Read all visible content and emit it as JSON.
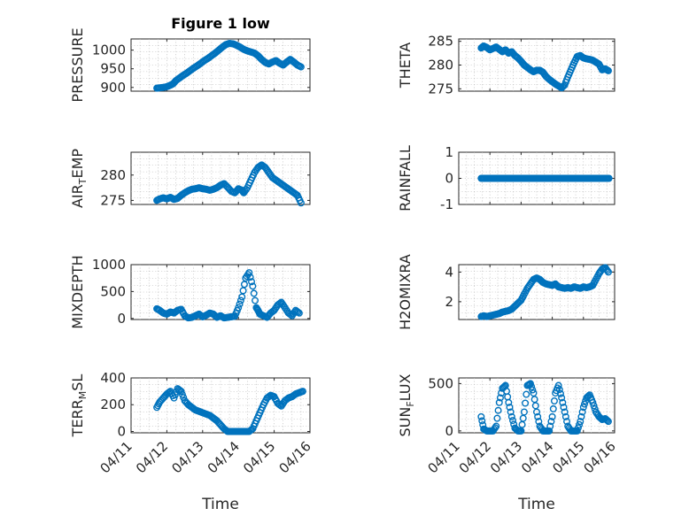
{
  "colors": {
    "marker": "#0072bd",
    "axis": "#262626",
    "grid": "#b8b8b8"
  },
  "chart_data": [
    {
      "id": "pressure",
      "type": "scatter",
      "title": "Figure 1 low",
      "ylabel": "PRESSURE",
      "xlabel": "",
      "xlim": [
        0,
        5
      ],
      "ylim": [
        890,
        1030
      ],
      "yticks": [
        900,
        950,
        1000
      ],
      "ytick_labels": [
        "900",
        "950",
        "1000"
      ],
      "xticks": [
        0,
        1,
        2,
        3,
        4,
        5
      ],
      "xtick_labels": [],
      "x": [
        0.72,
        0.8,
        0.9,
        1.0,
        1.1,
        1.18,
        1.25,
        1.35,
        1.45,
        1.55,
        1.65,
        1.75,
        1.85,
        1.95,
        2.05,
        2.15,
        2.25,
        2.35,
        2.45,
        2.55,
        2.65,
        2.75,
        2.85,
        2.95,
        3.05,
        3.15,
        3.25,
        3.35,
        3.45,
        3.55,
        3.65,
        3.75,
        3.85,
        3.95,
        4.05,
        4.15,
        4.25,
        4.35,
        4.45,
        4.55,
        4.65,
        4.75
      ],
      "y": [
        898,
        899,
        900,
        902,
        906,
        910,
        918,
        925,
        932,
        938,
        945,
        952,
        958,
        965,
        972,
        978,
        985,
        992,
        1000,
        1008,
        1015,
        1018,
        1017,
        1013,
        1008,
        1002,
        998,
        995,
        992,
        985,
        975,
        967,
        963,
        968,
        972,
        965,
        960,
        968,
        975,
        968,
        960,
        955
      ]
    },
    {
      "id": "theta",
      "type": "scatter",
      "ylabel": "THETA",
      "xlabel": "",
      "xlim": [
        0,
        5
      ],
      "ylim": [
        274.5,
        285.5
      ],
      "yticks": [
        275,
        280,
        285
      ],
      "ytick_labels": [
        "275",
        "280",
        "285"
      ],
      "xticks": [
        0,
        1,
        2,
        3,
        4,
        5
      ],
      "xtick_labels": [],
      "x": [
        0.72,
        0.8,
        0.9,
        1.0,
        1.1,
        1.2,
        1.3,
        1.4,
        1.5,
        1.6,
        1.7,
        1.8,
        1.9,
        2.0,
        2.1,
        2.2,
        2.3,
        2.4,
        2.5,
        2.6,
        2.7,
        2.8,
        2.9,
        3.0,
        3.1,
        3.2,
        3.3,
        3.4,
        3.5,
        3.6,
        3.7,
        3.8,
        3.9,
        4.0,
        4.1,
        4.2,
        4.3,
        4.4,
        4.5,
        4.6,
        4.7,
        4.8
      ],
      "y": [
        283.6,
        284.0,
        283.7,
        283.2,
        283.5,
        283.8,
        283.3,
        282.8,
        283.2,
        282.5,
        282.8,
        282.0,
        281.5,
        280.8,
        280.0,
        279.5,
        279.0,
        278.6,
        278.9,
        278.9,
        278.5,
        277.6,
        277.0,
        276.5,
        276.0,
        275.6,
        275.2,
        275.8,
        277.5,
        279.0,
        280.5,
        281.8,
        282.0,
        281.5,
        281.3,
        281.2,
        281.0,
        280.6,
        280.2,
        279.0,
        279.2,
        278.8
      ]
    },
    {
      "id": "air_temp",
      "type": "scatter",
      "ylabel": "AIR",
      "ylabel_sub": "T",
      "ylabel_suffix": "EMP",
      "xlabel": "",
      "xlim": [
        0,
        5
      ],
      "ylim": [
        274.2,
        284.5
      ],
      "yticks": [
        275,
        280
      ],
      "ytick_labels": [
        "275",
        "280"
      ],
      "xticks": [
        0,
        1,
        2,
        3,
        4,
        5
      ],
      "xtick_labels": [],
      "x": [
        0.72,
        0.8,
        0.9,
        1.0,
        1.1,
        1.2,
        1.3,
        1.4,
        1.5,
        1.6,
        1.7,
        1.8,
        1.9,
        2.0,
        2.1,
        2.2,
        2.3,
        2.4,
        2.5,
        2.6,
        2.7,
        2.8,
        2.9,
        3.0,
        3.1,
        3.15,
        3.25,
        3.35,
        3.45,
        3.55,
        3.65,
        3.75,
        3.85,
        3.95,
        4.05,
        4.15,
        4.25,
        4.35,
        4.45,
        4.55,
        4.65,
        4.75
      ],
      "y": [
        275.0,
        275.3,
        275.5,
        275.3,
        275.6,
        275.2,
        275.4,
        276.0,
        276.5,
        276.9,
        277.2,
        277.3,
        277.5,
        277.3,
        277.2,
        277.0,
        277.2,
        277.5,
        278.0,
        278.3,
        277.6,
        276.8,
        276.5,
        277.3,
        277.0,
        276.5,
        277.5,
        279.0,
        280.5,
        281.5,
        282.0,
        281.5,
        280.5,
        279.5,
        279.0,
        278.5,
        278.0,
        277.5,
        277.0,
        276.5,
        276.0,
        274.5
      ]
    },
    {
      "id": "rainfall",
      "type": "scatter",
      "ylabel": "RAINFALL",
      "xlabel": "",
      "xlim": [
        0,
        5
      ],
      "ylim": [
        -1,
        1
      ],
      "yticks": [
        -1,
        0,
        1
      ],
      "ytick_labels": [
        "-1",
        "0",
        "1"
      ],
      "xticks": [
        0,
        1,
        2,
        3,
        4,
        5
      ],
      "xtick_labels": [],
      "x": [
        0.72,
        0.82,
        0.92,
        1.02,
        1.12,
        1.22,
        1.32,
        1.42,
        1.52,
        1.62,
        1.72,
        1.82,
        1.92,
        2.02,
        2.12,
        2.22,
        2.32,
        2.42,
        2.52,
        2.62,
        2.72,
        2.82,
        2.92,
        3.02,
        3.12,
        3.22,
        3.32,
        3.42,
        3.52,
        3.62,
        3.72,
        3.82,
        3.92,
        4.02,
        4.12,
        4.22,
        4.32,
        4.42,
        4.52,
        4.62,
        4.72,
        4.82
      ],
      "y": [
        0,
        0,
        0,
        0,
        0,
        0,
        0,
        0,
        0,
        0,
        0,
        0,
        0,
        0,
        0,
        0,
        0,
        0,
        0,
        0,
        0,
        0,
        0,
        0,
        0,
        0,
        0,
        0,
        0,
        0,
        0,
        0,
        0,
        0,
        0,
        0,
        0,
        0,
        0,
        0,
        0,
        0
      ]
    },
    {
      "id": "mixdepth",
      "type": "scatter",
      "ylabel": "MIXDEPTH",
      "xlabel": "",
      "xlim": [
        0,
        5
      ],
      "ylim": [
        -20,
        1000
      ],
      "yticks": [
        0,
        500,
        1000
      ],
      "ytick_labels": [
        "0",
        "500",
        "1000"
      ],
      "xticks": [
        0,
        1,
        2,
        3,
        4,
        5
      ],
      "xtick_labels": [],
      "x": [
        0.72,
        0.8,
        0.9,
        1.0,
        1.1,
        1.2,
        1.3,
        1.4,
        1.5,
        1.6,
        1.7,
        1.8,
        1.9,
        2.0,
        2.1,
        2.2,
        2.3,
        2.4,
        2.5,
        2.6,
        2.7,
        2.8,
        2.9,
        3.0,
        3.1,
        3.2,
        3.3,
        3.4,
        3.5,
        3.55,
        3.6,
        3.7,
        3.8,
        3.9,
        4.0,
        4.1,
        4.2,
        4.3,
        4.4,
        4.5,
        4.6,
        4.7
      ],
      "y": [
        180,
        150,
        100,
        80,
        120,
        100,
        150,
        170,
        50,
        10,
        20,
        50,
        80,
        30,
        60,
        100,
        80,
        20,
        50,
        10,
        20,
        30,
        40,
        200,
        400,
        750,
        850,
        600,
        200,
        150,
        80,
        50,
        20,
        100,
        150,
        250,
        300,
        200,
        100,
        50,
        150,
        100
      ]
    },
    {
      "id": "h2omixra",
      "type": "scatter",
      "ylabel": "H2OMIXRA",
      "xlabel": "",
      "xlim": [
        0,
        5
      ],
      "ylim": [
        0.8,
        4.5
      ],
      "yticks": [
        2,
        4
      ],
      "ytick_labels": [
        "2",
        "4"
      ],
      "xticks": [
        0,
        1,
        2,
        3,
        4,
        5
      ],
      "xtick_labels": [],
      "x": [
        0.72,
        0.8,
        0.9,
        1.0,
        1.1,
        1.2,
        1.3,
        1.4,
        1.5,
        1.6,
        1.7,
        1.8,
        1.9,
        2.0,
        2.1,
        2.2,
        2.3,
        2.4,
        2.5,
        2.6,
        2.7,
        2.8,
        2.9,
        3.0,
        3.1,
        3.2,
        3.3,
        3.4,
        3.5,
        3.6,
        3.7,
        3.8,
        3.9,
        4.0,
        4.1,
        4.2,
        4.3,
        4.4,
        4.5,
        4.6,
        4.7,
        4.8
      ],
      "y": [
        1.0,
        1.05,
        1.0,
        1.05,
        1.1,
        1.15,
        1.2,
        1.3,
        1.35,
        1.4,
        1.5,
        1.7,
        1.9,
        2.1,
        2.5,
        2.9,
        3.2,
        3.5,
        3.6,
        3.5,
        3.3,
        3.2,
        3.15,
        3.1,
        3.2,
        3.0,
        2.95,
        2.9,
        2.95,
        2.9,
        3.0,
        2.95,
        2.9,
        3.0,
        2.95,
        3.0,
        3.1,
        3.5,
        3.9,
        4.2,
        4.3,
        4.0
      ]
    },
    {
      "id": "terr_msl",
      "type": "scatter",
      "ylabel": "TERR",
      "ylabel_sub": "M",
      "ylabel_suffix": "SL",
      "xlabel": "Time",
      "xlim": [
        0,
        5
      ],
      "ylim": [
        -10,
        400
      ],
      "yticks": [
        0,
        200,
        400
      ],
      "ytick_labels": [
        "0",
        "200",
        "400"
      ],
      "xticks": [
        0,
        1,
        2,
        3,
        4,
        5
      ],
      "xtick_labels": [
        "04/11",
        "04/12",
        "04/13",
        "04/14",
        "04/15",
        "04/16"
      ],
      "x": [
        0.72,
        0.8,
        0.9,
        1.0,
        1.1,
        1.2,
        1.3,
        1.4,
        1.5,
        1.6,
        1.7,
        1.8,
        1.9,
        2.0,
        2.1,
        2.2,
        2.3,
        2.4,
        2.5,
        2.6,
        2.7,
        2.8,
        2.9,
        3.0,
        3.1,
        3.2,
        3.3,
        3.4,
        3.5,
        3.6,
        3.7,
        3.8,
        3.9,
        4.0,
        4.1,
        4.2,
        4.3,
        4.4,
        4.5,
        4.6,
        4.7,
        4.8
      ],
      "y": [
        180,
        220,
        250,
        280,
        300,
        250,
        320,
        300,
        230,
        200,
        180,
        160,
        150,
        140,
        130,
        120,
        100,
        80,
        50,
        20,
        0,
        0,
        0,
        0,
        0,
        0,
        0,
        20,
        80,
        140,
        200,
        250,
        270,
        260,
        210,
        190,
        230,
        250,
        260,
        280,
        290,
        300
      ]
    },
    {
      "id": "sun_flux",
      "type": "scatter",
      "ylabel": "SUN",
      "ylabel_sub": "F",
      "ylabel_suffix": "LUX",
      "xlabel": "Time",
      "xlim": [
        0,
        5
      ],
      "ylim": [
        -20,
        560
      ],
      "yticks": [
        0,
        500
      ],
      "ytick_labels": [
        "0",
        "500"
      ],
      "xticks": [
        0,
        1,
        2,
        3,
        4,
        5
      ],
      "xtick_labels": [
        "04/11",
        "04/12",
        "04/13",
        "04/14",
        "04/15",
        "04/16"
      ],
      "x": [
        0.72,
        0.8,
        0.9,
        1.0,
        1.1,
        1.2,
        1.3,
        1.4,
        1.5,
        1.6,
        1.7,
        1.8,
        1.9,
        2.0,
        2.1,
        2.2,
        2.3,
        2.4,
        2.5,
        2.6,
        2.7,
        2.8,
        2.9,
        3.0,
        3.1,
        3.2,
        3.3,
        3.4,
        3.5,
        3.6,
        3.7,
        3.8,
        3.9,
        4.0,
        4.1,
        4.2,
        4.3,
        4.4,
        4.5,
        4.6,
        4.7,
        4.8
      ],
      "y": [
        150,
        20,
        0,
        0,
        0,
        50,
        300,
        450,
        480,
        300,
        150,
        30,
        0,
        0,
        200,
        480,
        500,
        400,
        200,
        50,
        0,
        0,
        0,
        150,
        400,
        480,
        350,
        200,
        50,
        0,
        0,
        0,
        100,
        250,
        350,
        380,
        300,
        200,
        150,
        120,
        130,
        100
      ]
    }
  ]
}
